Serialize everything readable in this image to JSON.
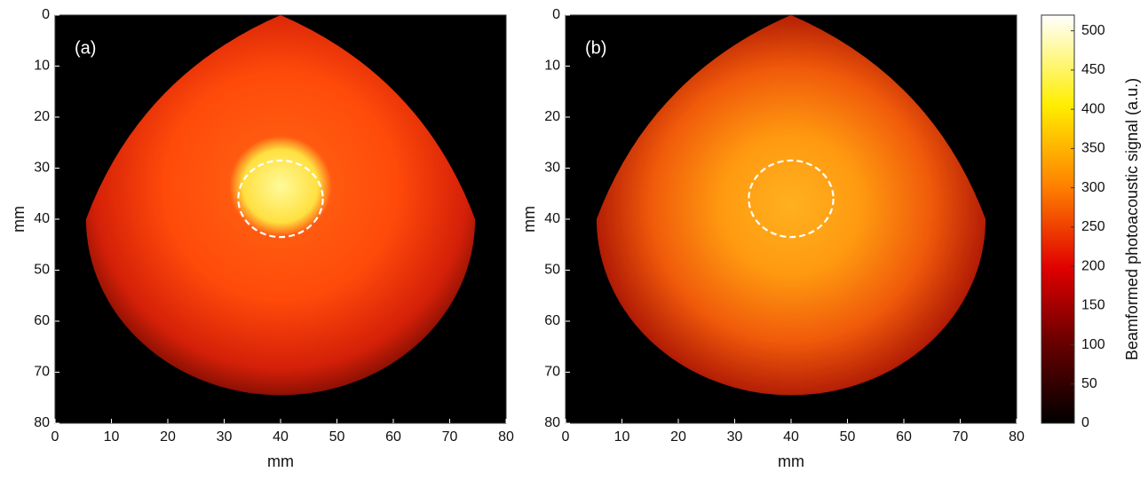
{
  "chart_data": [
    {
      "type": "heatmap",
      "panel_label": "(a)",
      "xlabel": "mm",
      "ylabel": "mm",
      "xlim": [
        0,
        80
      ],
      "ylim": [
        80,
        0
      ],
      "xticks": [
        0,
        10,
        20,
        30,
        40,
        50,
        60,
        70,
        80
      ],
      "yticks": [
        0,
        10,
        20,
        30,
        40,
        50,
        60,
        70,
        80
      ],
      "circle": {
        "cx": 40,
        "cy": 36,
        "r": 7.5
      },
      "style": "bright-center"
    },
    {
      "type": "heatmap",
      "panel_label": "(b)",
      "xlabel": "mm",
      "ylabel": "mm",
      "xlim": [
        0,
        80
      ],
      "ylim": [
        80,
        0
      ],
      "xticks": [
        0,
        10,
        20,
        30,
        40,
        50,
        60,
        70,
        80
      ],
      "yticks": [
        0,
        10,
        20,
        30,
        40,
        50,
        60,
        70,
        80
      ],
      "circle": {
        "cx": 40,
        "cy": 36,
        "r": 7.5
      },
      "style": "smooth"
    }
  ],
  "colorbar": {
    "label": "Beamformed photoacoustic signal (a.u.)",
    "clim": [
      0,
      520
    ],
    "ticks": [
      0,
      50,
      100,
      150,
      200,
      250,
      300,
      350,
      400,
      450,
      500
    ]
  }
}
